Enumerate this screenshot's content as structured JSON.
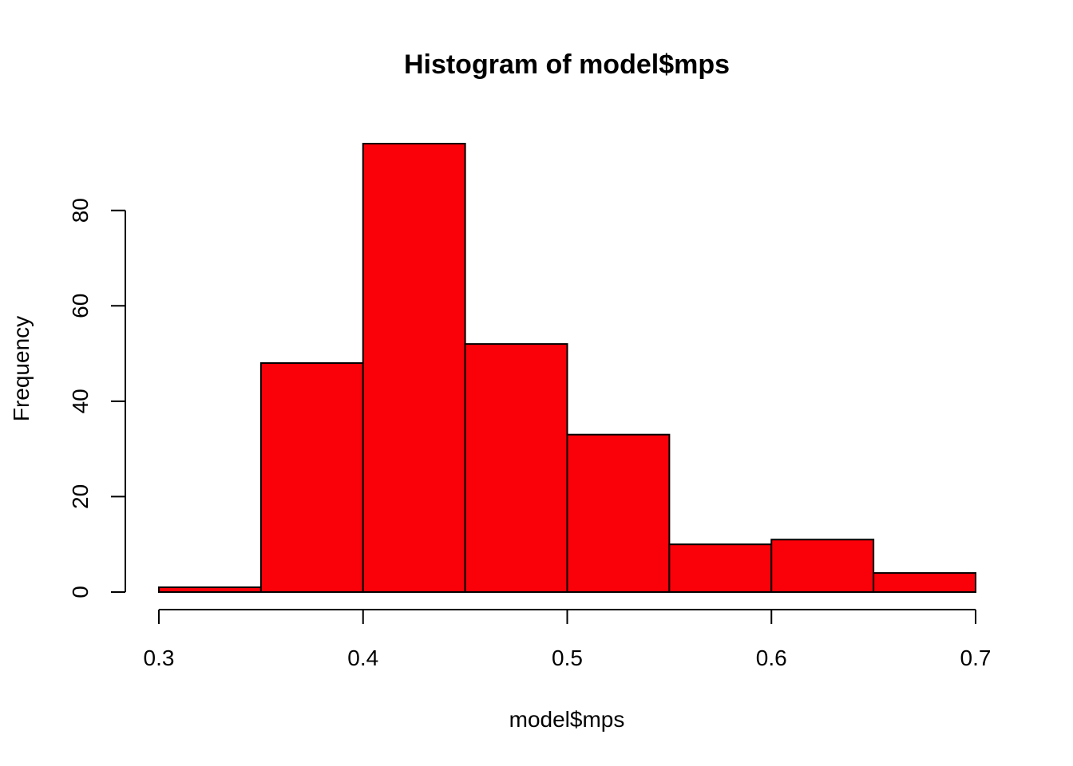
{
  "chart_data": {
    "type": "bar",
    "title": "Histogram of model$mps",
    "xlabel": "model$mps",
    "ylabel": "Frequency",
    "bin_edges": [
      0.3,
      0.35,
      0.4,
      0.45,
      0.5,
      0.55,
      0.6,
      0.65,
      0.7
    ],
    "values": [
      1,
      48,
      94,
      52,
      33,
      10,
      11,
      4
    ],
    "xlim": [
      0.3,
      0.7
    ],
    "ylim": [
      0,
      94
    ],
    "x_ticks": [
      0.3,
      0.4,
      0.5,
      0.6,
      0.7
    ],
    "x_tick_labels": [
      "0.3",
      "0.4",
      "0.5",
      "0.6",
      "0.7"
    ],
    "y_ticks": [
      0,
      20,
      40,
      60,
      80
    ],
    "y_tick_labels": [
      "0",
      "20",
      "40",
      "60",
      "80"
    ],
    "bar_color": "#fa0008",
    "grid": false
  }
}
